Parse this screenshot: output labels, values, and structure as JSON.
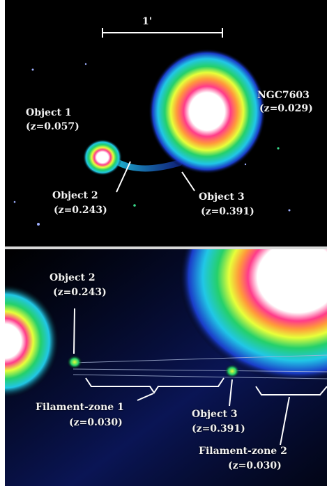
{
  "scale_bar": {
    "label": "1'"
  },
  "top_panel": {
    "ngc7603": {
      "name": "NGC7603",
      "redshift": "(z=0.029)"
    },
    "object1": {
      "name": "Object 1",
      "redshift": "(z=0.057)"
    },
    "object2": {
      "name": "Object 2",
      "redshift": "(z=0.243)"
    },
    "object3": {
      "name": "Object 3",
      "redshift": "(z=0.391)"
    }
  },
  "bottom_panel": {
    "object2": {
      "name": "Object 2",
      "redshift": "(z=0.243)"
    },
    "filament_zone_1": {
      "name": "Filament-zone 1",
      "redshift": "(z=0.030)"
    },
    "object3": {
      "name": "Object 3",
      "redshift": "(z=0.391)"
    },
    "filament_zone_2": {
      "name": "Filament-zone 2",
      "redshift": "(z=0.030)"
    }
  },
  "colors": {
    "background": "#000000",
    "label_text": "#f2f2f2",
    "divider": "#d8d8d8",
    "halo_core": "#ffffff",
    "halo_inner": "#ff3b8a",
    "halo_mid": "#e8ff3a",
    "halo_green": "#25d06a",
    "halo_cyan": "#21c7e6",
    "halo_blue": "#1a3cc8"
  }
}
